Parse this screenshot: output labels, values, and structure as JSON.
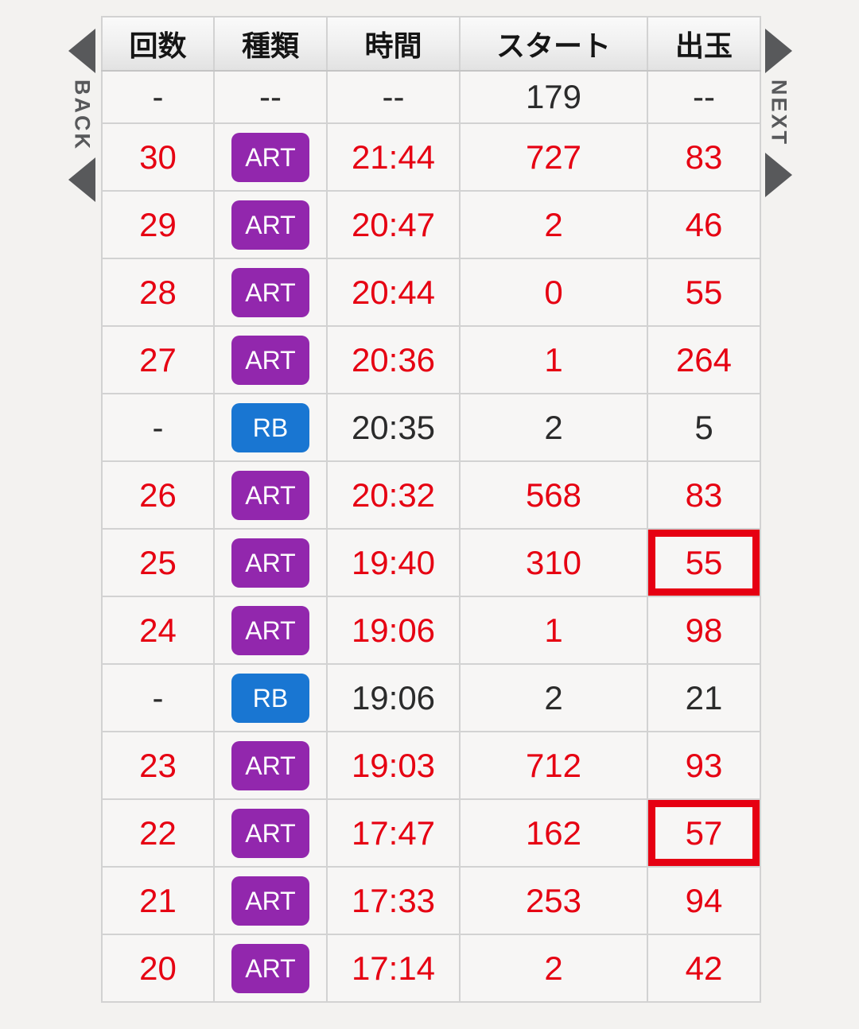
{
  "nav": {
    "back_label": "BACK",
    "next_label": "NEXT"
  },
  "colors": {
    "accent_red": "#e60012",
    "art_badge_purple": "#9227ad",
    "rb_badge_blue": "#1976d2",
    "text_black": "#2b2b2b"
  },
  "table": {
    "headers": {
      "kaisu": "回数",
      "type": "種類",
      "time": "時間",
      "start": "スタート",
      "dedama": "出玉"
    },
    "rows": [
      {
        "kaisu": "-",
        "type": "--",
        "time": "--",
        "start": "179",
        "dedama": "--",
        "badge": null,
        "color": "black",
        "boxed": false
      },
      {
        "kaisu": "30",
        "type": "ART",
        "time": "21:44",
        "start": "727",
        "dedama": "83",
        "badge": "ART",
        "color": "red",
        "boxed": false
      },
      {
        "kaisu": "29",
        "type": "ART",
        "time": "20:47",
        "start": "2",
        "dedama": "46",
        "badge": "ART",
        "color": "red",
        "boxed": false
      },
      {
        "kaisu": "28",
        "type": "ART",
        "time": "20:44",
        "start": "0",
        "dedama": "55",
        "badge": "ART",
        "color": "red",
        "boxed": false
      },
      {
        "kaisu": "27",
        "type": "ART",
        "time": "20:36",
        "start": "1",
        "dedama": "264",
        "badge": "ART",
        "color": "red",
        "boxed": false
      },
      {
        "kaisu": "-",
        "type": "RB",
        "time": "20:35",
        "start": "2",
        "dedama": "5",
        "badge": "RB",
        "color": "black",
        "boxed": false
      },
      {
        "kaisu": "26",
        "type": "ART",
        "time": "20:32",
        "start": "568",
        "dedama": "83",
        "badge": "ART",
        "color": "red",
        "boxed": false
      },
      {
        "kaisu": "25",
        "type": "ART",
        "time": "19:40",
        "start": "310",
        "dedama": "55",
        "badge": "ART",
        "color": "red",
        "boxed": true
      },
      {
        "kaisu": "24",
        "type": "ART",
        "time": "19:06",
        "start": "1",
        "dedama": "98",
        "badge": "ART",
        "color": "red",
        "boxed": false
      },
      {
        "kaisu": "-",
        "type": "RB",
        "time": "19:06",
        "start": "2",
        "dedama": "21",
        "badge": "RB",
        "color": "black",
        "boxed": false
      },
      {
        "kaisu": "23",
        "type": "ART",
        "time": "19:03",
        "start": "712",
        "dedama": "93",
        "badge": "ART",
        "color": "red",
        "boxed": false
      },
      {
        "kaisu": "22",
        "type": "ART",
        "time": "17:47",
        "start": "162",
        "dedama": "57",
        "badge": "ART",
        "color": "red",
        "boxed": true
      },
      {
        "kaisu": "21",
        "type": "ART",
        "time": "17:33",
        "start": "253",
        "dedama": "94",
        "badge": "ART",
        "color": "red",
        "boxed": false
      },
      {
        "kaisu": "20",
        "type": "ART",
        "time": "17:14",
        "start": "2",
        "dedama": "42",
        "badge": "ART",
        "color": "red",
        "boxed": false
      }
    ]
  }
}
